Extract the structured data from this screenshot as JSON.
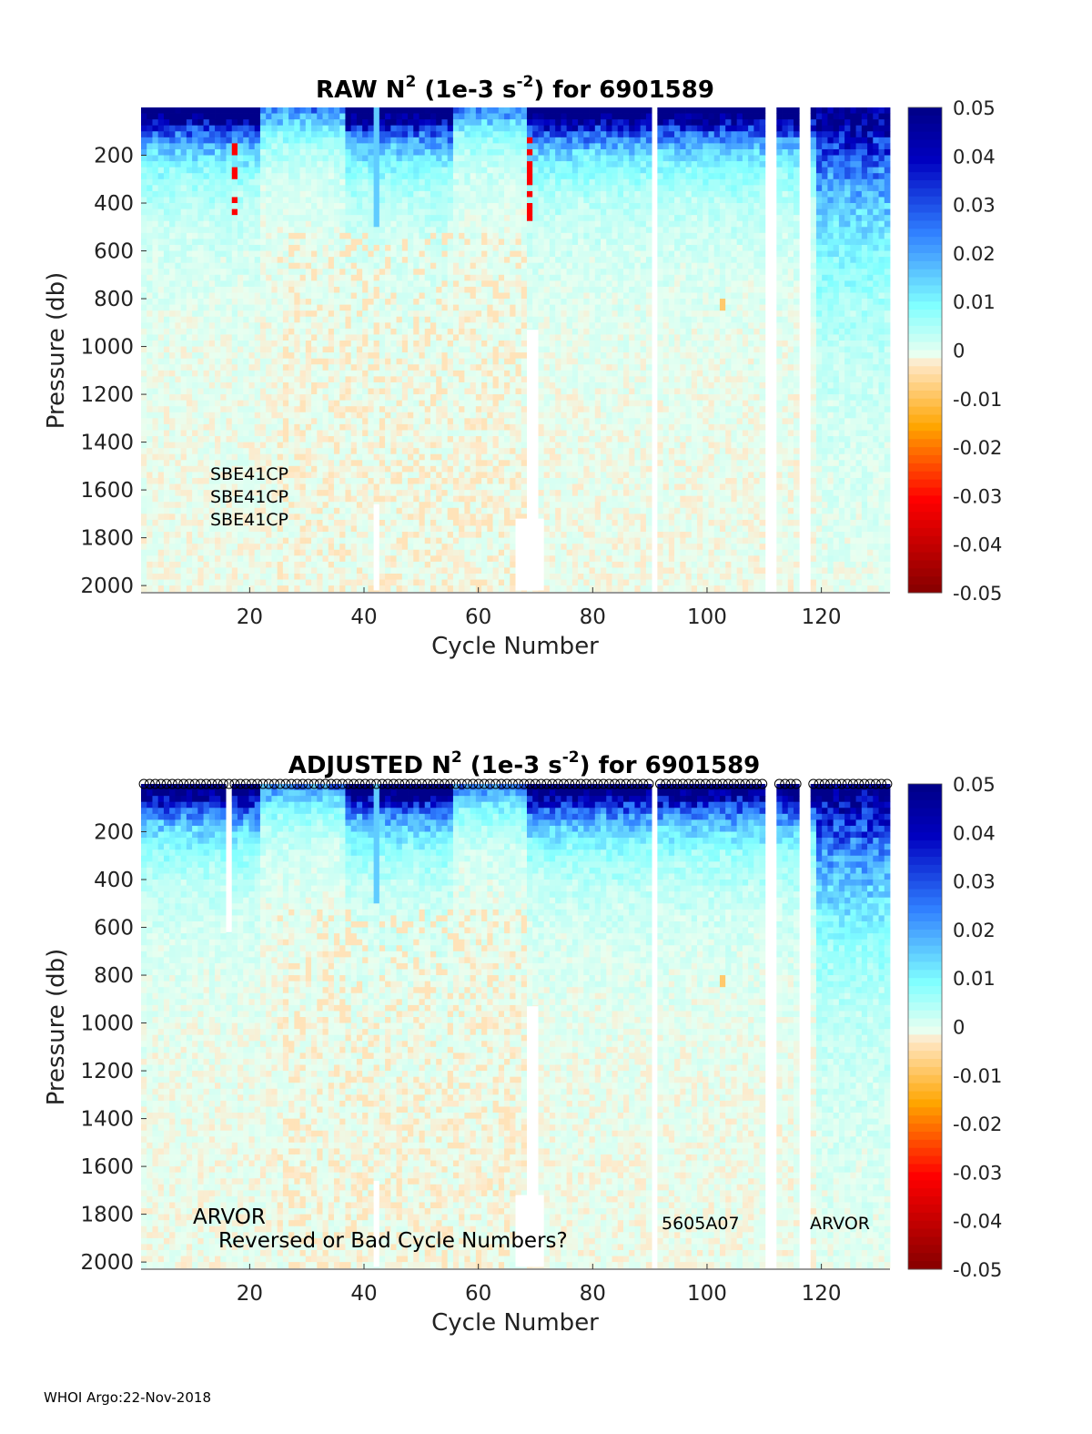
{
  "footer": "WHOI Argo:22-Nov-2018",
  "colors": {
    "background_ok": "#e0ffe8",
    "colormap_stops": [
      "#800000",
      "#ff0000",
      "#ffa500",
      "#ffe8c8",
      "#e8fff0",
      "#80ffff",
      "#3080ff",
      "#0000c0",
      "#00008a"
    ]
  },
  "chart_data": [
    {
      "type": "heatmap",
      "title": {
        "prefix": "RAW N",
        "sup1": "2",
        "middle": " (1e-3 s",
        "sup2": "-2",
        "suffix": ") for 6901589"
      },
      "xlabel": "Cycle Number",
      "ylabel": "Pressure (db)",
      "xlim": [
        1,
        132
      ],
      "ylim": [
        2000,
        0
      ],
      "xticks": [
        20,
        40,
        60,
        80,
        100,
        120
      ],
      "yticks": [
        200,
        400,
        600,
        800,
        1000,
        1200,
        1400,
        1600,
        1800,
        2000
      ],
      "colorbar": {
        "min": -0.05,
        "max": 0.05,
        "ticks": [
          "0.05",
          "0.04",
          "0.03",
          "0.02",
          "0.01",
          "0",
          "-0.01",
          "-0.02",
          "-0.03",
          "-0.04",
          "-0.05"
        ]
      },
      "missing_cycles": [
        91,
        111,
        112,
        117,
        118
      ],
      "gap_segments": [
        {
          "cycles": [
            67,
            71
          ],
          "from_pressure": 1720,
          "to_pressure": 2020
        },
        {
          "cycles": [
            69,
            70
          ],
          "from_pressure": 930,
          "to_pressure": 2020
        },
        {
          "cycles": [
            42,
            42
          ],
          "from_pressure": 1660,
          "to_pressure": 2020
        }
      ],
      "annotations": [
        "SBE41CP",
        "SBE41CP",
        "SBE41CP"
      ],
      "markers_top": false
    },
    {
      "type": "heatmap",
      "title": {
        "prefix": "ADJUSTED N",
        "sup1": "2",
        "middle": " (1e-3 s",
        "sup2": "-2",
        "suffix": ") for 6901589"
      },
      "xlabel": "Cycle Number",
      "ylabel": "Pressure (db)",
      "xlim": [
        1,
        132
      ],
      "ylim": [
        2000,
        0
      ],
      "xticks": [
        20,
        40,
        60,
        80,
        100,
        120
      ],
      "yticks": [
        200,
        400,
        600,
        800,
        1000,
        1200,
        1400,
        1600,
        1800,
        2000
      ],
      "colorbar": {
        "min": -0.05,
        "max": 0.05,
        "ticks": [
          "0.05",
          "0.04",
          "0.03",
          "0.02",
          "0.01",
          "0",
          "-0.01",
          "-0.02",
          "-0.03",
          "-0.04",
          "-0.05"
        ]
      },
      "missing_cycles": [
        91,
        111,
        112,
        117,
        118
      ],
      "gap_segments": [
        {
          "cycles": [
            67,
            71
          ],
          "from_pressure": 1720,
          "to_pressure": 2020
        },
        {
          "cycles": [
            69,
            70
          ],
          "from_pressure": 930,
          "to_pressure": 2020
        },
        {
          "cycles": [
            42,
            42
          ],
          "from_pressure": 1660,
          "to_pressure": 2020
        },
        {
          "cycles": [
            16,
            16
          ],
          "from_pressure": 0,
          "to_pressure": 620
        }
      ],
      "annotations": [
        "ARVOR",
        "Reversed or Bad Cycle Numbers?",
        "5605A07",
        "ARVOR"
      ],
      "markers_top": true
    }
  ]
}
